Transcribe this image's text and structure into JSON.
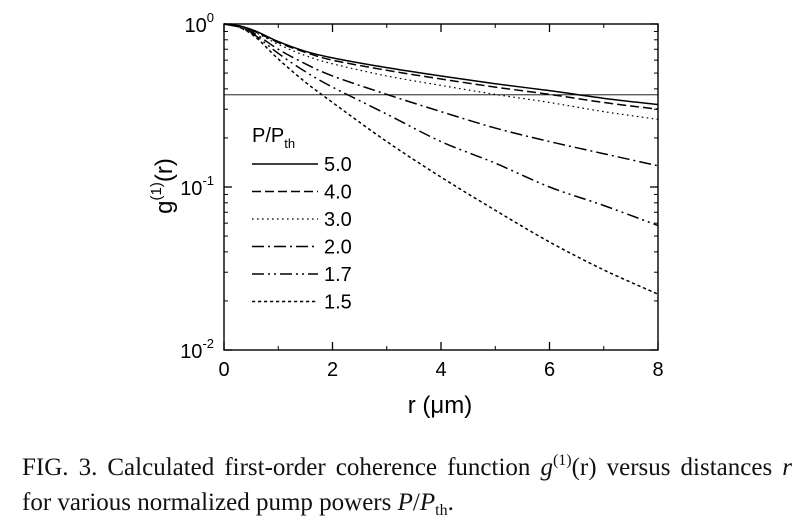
{
  "chart_data": {
    "type": "line",
    "xlabel": "r (μm)",
    "ylabel": {
      "base": "g",
      "sup": "(1)",
      "arg": "(r)"
    },
    "xlim": [
      0,
      8
    ],
    "ylim": [
      0.01,
      1
    ],
    "yscale": "log",
    "xticks": [
      0,
      2,
      4,
      6,
      8
    ],
    "xtick_labels": [
      "0",
      "2",
      "4",
      "6",
      "8"
    ],
    "yticks": [
      0.01,
      0.1,
      1
    ],
    "ytick_labels": [
      {
        "base": "10",
        "exp": "-2"
      },
      {
        "base": "10",
        "exp": "-1"
      },
      {
        "base": "10",
        "exp": "0"
      }
    ],
    "grid": false,
    "legend": {
      "placement": "left-middle",
      "title": "P/P",
      "title_sub": "th"
    },
    "reference_lines": [
      {
        "y": 1.0
      },
      {
        "y": 0.3679
      }
    ],
    "x": [
      0,
      0.3,
      0.6,
      1.0,
      1.5,
      2.0,
      3.0,
      4.0,
      5.0,
      6.0,
      7.0,
      8.0
    ],
    "series": [
      {
        "name": "5.0",
        "dash": "solid",
        "values": [
          1.0,
          0.97,
          0.9,
          0.78,
          0.68,
          0.62,
          0.54,
          0.48,
          0.43,
          0.39,
          0.35,
          0.32
        ]
      },
      {
        "name": "4.0",
        "dash": "dashed",
        "values": [
          1.0,
          0.97,
          0.89,
          0.77,
          0.67,
          0.6,
          0.52,
          0.46,
          0.41,
          0.37,
          0.33,
          0.3
        ]
      },
      {
        "name": "3.0",
        "dash": "dotted",
        "values": [
          1.0,
          0.96,
          0.88,
          0.75,
          0.64,
          0.57,
          0.48,
          0.42,
          0.37,
          0.33,
          0.29,
          0.26
        ]
      },
      {
        "name": "2.0",
        "dash": "dashdot",
        "values": [
          1.0,
          0.96,
          0.86,
          0.7,
          0.57,
          0.48,
          0.37,
          0.29,
          0.23,
          0.19,
          0.16,
          0.135
        ]
      },
      {
        "name": "1.7",
        "dash": "dashdotdot",
        "values": [
          1.0,
          0.95,
          0.84,
          0.66,
          0.51,
          0.41,
          0.28,
          0.19,
          0.14,
          0.1,
          0.077,
          0.058
        ]
      },
      {
        "name": "1.5",
        "dash": "shortdash",
        "values": [
          1.0,
          0.95,
          0.82,
          0.61,
          0.44,
          0.33,
          0.19,
          0.115,
          0.072,
          0.046,
          0.031,
          0.022
        ]
      }
    ]
  },
  "caption": {
    "prefix": "FIG. 3. Calculated first-order coherence function ",
    "g": "g",
    "g_sup": "(1)",
    "g_arg": "(r)",
    "middle": " versus distances ",
    "r": "r",
    "suffix1": " for various normalized pump powers ",
    "P": "P",
    "slash": "/",
    "Pth": "P",
    "th": "th",
    "end": "."
  }
}
